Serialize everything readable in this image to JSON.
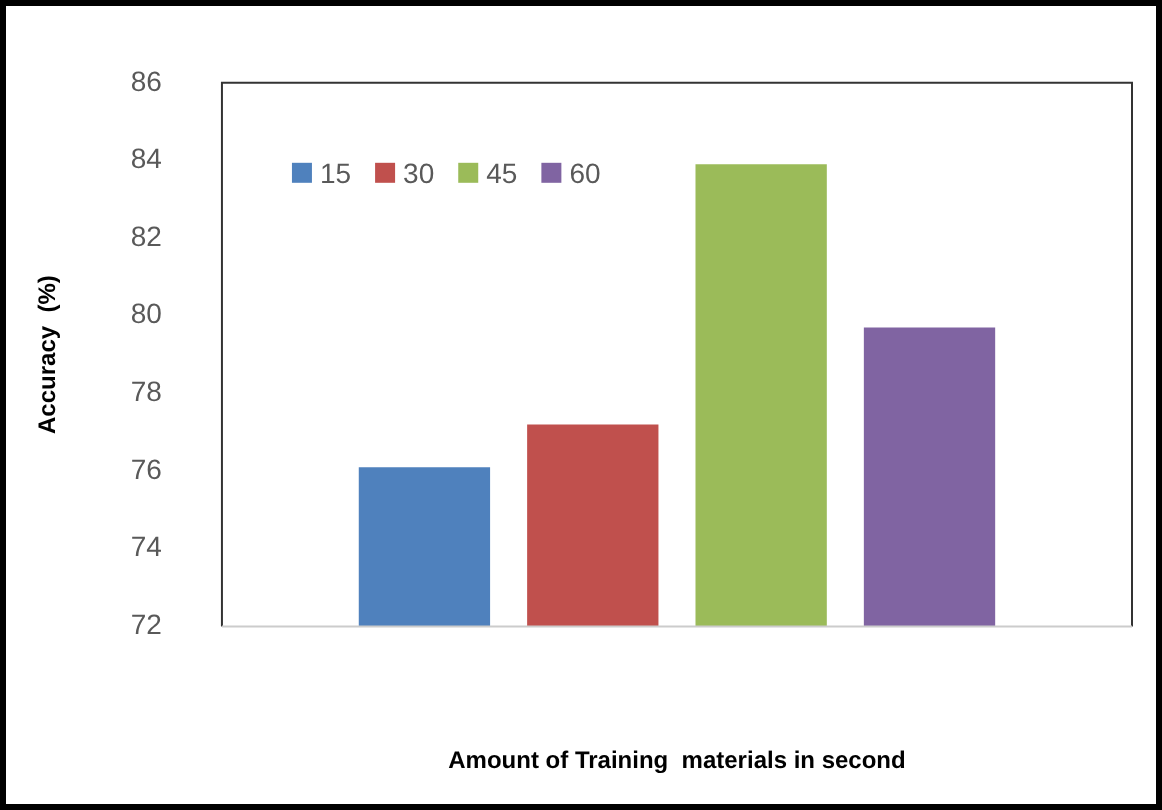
{
  "chart_data": {
    "type": "bar",
    "xlabel": "Amount of Training  materials in second",
    "ylabel": "Accuracy  (%)",
    "categories": [
      null
    ],
    "series": [
      {
        "name": "15",
        "color": "#4f81bd",
        "values": [
          76.1
        ]
      },
      {
        "name": "30",
        "color": "#c0504d",
        "values": [
          77.2
        ]
      },
      {
        "name": "45",
        "color": "#9bbb59",
        "values": [
          83.9
        ]
      },
      {
        "name": "60",
        "color": "#8064a2",
        "values": [
          79.7
        ]
      }
    ],
    "ylim": [
      72,
      86
    ],
    "yticks": [
      72,
      74,
      76,
      78,
      80,
      82,
      84,
      86
    ],
    "grid": false,
    "legend": "top left"
  }
}
